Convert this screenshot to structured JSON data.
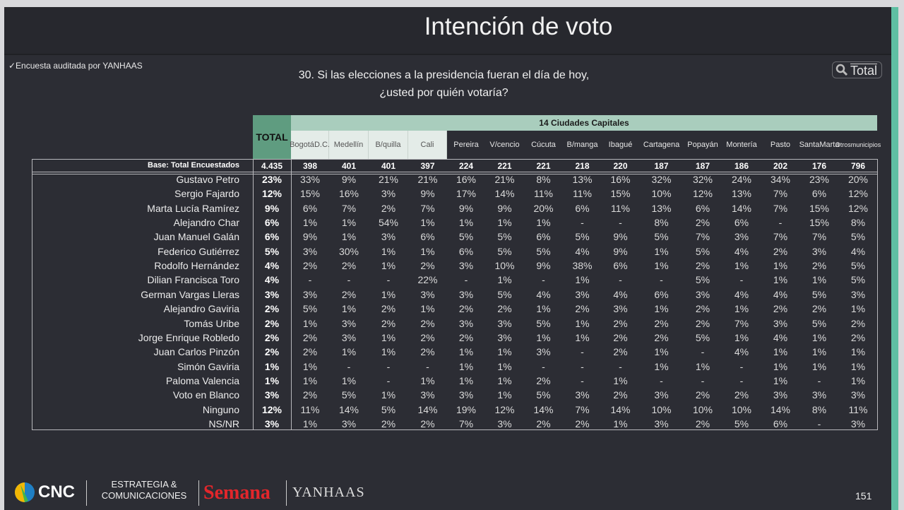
{
  "header": {
    "title": "Intención de voto"
  },
  "audit_note": "✓Encuesta auditada por YANHAAS",
  "question": {
    "line1": "30. Si las elecciones a la presidencia fueran el día de hoy,",
    "line2": "¿usted por quién votaría?"
  },
  "filter": {
    "icon": "search-icon",
    "label": "Total"
  },
  "table": {
    "group_header": "14 Ciudades Capitales",
    "total_header": "TOTAL",
    "columns": [
      {
        "l1": "Bogotá",
        "l2": "D.C.",
        "light": true
      },
      {
        "l1": "Medellín",
        "l2": "",
        "light": true
      },
      {
        "l1": "B/quilla",
        "l2": "",
        "light": true
      },
      {
        "l1": "Cali",
        "l2": "",
        "light": true
      },
      {
        "l1": "Pereira",
        "l2": ""
      },
      {
        "l1": "V/cencio",
        "l2": ""
      },
      {
        "l1": "Cúcuta",
        "l2": ""
      },
      {
        "l1": "B/manga",
        "l2": ""
      },
      {
        "l1": "Ibagué",
        "l2": ""
      },
      {
        "l1": "Cartagena",
        "l2": ""
      },
      {
        "l1": "Popayán",
        "l2": ""
      },
      {
        "l1": "Montería",
        "l2": ""
      },
      {
        "l1": "Pasto",
        "l2": ""
      },
      {
        "l1": "Santa",
        "l2": "Marta"
      },
      {
        "l1": "Otros",
        "l2": "municipios",
        "small": true
      }
    ],
    "base": {
      "label": "Base: Total Encuestados",
      "total": "4.435",
      "values": [
        "398",
        "401",
        "401",
        "397",
        "224",
        "221",
        "221",
        "218",
        "220",
        "187",
        "187",
        "186",
        "202",
        "176",
        "796"
      ]
    },
    "rows": [
      {
        "label": "Gustavo Petro",
        "total": "23%",
        "values": [
          "33%",
          "9%",
          "21%",
          "21%",
          "16%",
          "21%",
          "8%",
          "13%",
          "16%",
          "32%",
          "32%",
          "24%",
          "34%",
          "23%",
          "20%"
        ]
      },
      {
        "label": "Sergio Fajardo",
        "total": "12%",
        "values": [
          "15%",
          "16%",
          "3%",
          "9%",
          "17%",
          "14%",
          "11%",
          "11%",
          "15%",
          "10%",
          "12%",
          "13%",
          "7%",
          "6%",
          "12%"
        ]
      },
      {
        "label": "Marta Lucía Ramírez",
        "total": "9%",
        "values": [
          "6%",
          "7%",
          "2%",
          "7%",
          "9%",
          "9%",
          "20%",
          "6%",
          "11%",
          "13%",
          "6%",
          "14%",
          "7%",
          "15%",
          "12%"
        ]
      },
      {
        "label": "Alejandro Char",
        "total": "6%",
        "values": [
          "1%",
          "1%",
          "54%",
          "1%",
          "1%",
          "1%",
          "1%",
          "-",
          "-",
          "8%",
          "2%",
          "6%",
          "-",
          "15%",
          "8%"
        ]
      },
      {
        "label": "Juan Manuel Galán",
        "total": "6%",
        "values": [
          "9%",
          "1%",
          "3%",
          "6%",
          "5%",
          "5%",
          "6%",
          "5%",
          "9%",
          "5%",
          "7%",
          "3%",
          "7%",
          "7%",
          "5%"
        ]
      },
      {
        "label": "Federico Gutiérrez",
        "total": "5%",
        "values": [
          "3%",
          "30%",
          "1%",
          "1%",
          "6%",
          "5%",
          "5%",
          "4%",
          "9%",
          "1%",
          "5%",
          "4%",
          "2%",
          "3%",
          "4%"
        ]
      },
      {
        "label": "Rodolfo Hernández",
        "total": "4%",
        "values": [
          "2%",
          "2%",
          "1%",
          "2%",
          "3%",
          "10%",
          "9%",
          "38%",
          "6%",
          "1%",
          "2%",
          "1%",
          "1%",
          "2%",
          "5%"
        ]
      },
      {
        "label": "Dilian Francisca Toro",
        "total": "4%",
        "values": [
          "-",
          "-",
          "-",
          "22%",
          "-",
          "1%",
          "-",
          "1%",
          "-",
          "-",
          "5%",
          "-",
          "1%",
          "1%",
          "5%"
        ]
      },
      {
        "label": "German Vargas Lleras",
        "total": "3%",
        "values": [
          "3%",
          "2%",
          "1%",
          "3%",
          "3%",
          "5%",
          "4%",
          "3%",
          "4%",
          "6%",
          "3%",
          "4%",
          "4%",
          "5%",
          "3%"
        ]
      },
      {
        "label": "Alejandro Gaviria",
        "total": "2%",
        "values": [
          "5%",
          "1%",
          "2%",
          "1%",
          "2%",
          "2%",
          "1%",
          "2%",
          "3%",
          "1%",
          "2%",
          "1%",
          "2%",
          "2%",
          "1%"
        ]
      },
      {
        "label": "Tomás Uribe",
        "total": "2%",
        "values": [
          "1%",
          "3%",
          "2%",
          "2%",
          "3%",
          "3%",
          "5%",
          "1%",
          "2%",
          "2%",
          "2%",
          "7%",
          "3%",
          "5%",
          "2%"
        ]
      },
      {
        "label": "Jorge Enrique Robledo",
        "total": "2%",
        "values": [
          "2%",
          "3%",
          "1%",
          "2%",
          "2%",
          "3%",
          "1%",
          "1%",
          "2%",
          "2%",
          "5%",
          "1%",
          "4%",
          "1%",
          "2%"
        ]
      },
      {
        "label": "Juan Carlos Pinzón",
        "total": "2%",
        "values": [
          "2%",
          "1%",
          "1%",
          "2%",
          "1%",
          "1%",
          "3%",
          "-",
          "2%",
          "1%",
          "-",
          "4%",
          "1%",
          "1%",
          "1%"
        ]
      },
      {
        "label": "Simón Gaviria",
        "total": "1%",
        "values": [
          "1%",
          "-",
          "-",
          "-",
          "1%",
          "1%",
          "-",
          "-",
          "-",
          "1%",
          "1%",
          "-",
          "1%",
          "1%",
          "1%"
        ]
      },
      {
        "label": "Paloma Valencia",
        "total": "1%",
        "values": [
          "1%",
          "1%",
          "-",
          "1%",
          "1%",
          "1%",
          "2%",
          "-",
          "1%",
          "-",
          "-",
          "-",
          "1%",
          "-",
          "1%"
        ]
      },
      {
        "label": "Voto en Blanco",
        "total": "3%",
        "values": [
          "2%",
          "5%",
          "1%",
          "3%",
          "3%",
          "1%",
          "5%",
          "3%",
          "2%",
          "3%",
          "2%",
          "2%",
          "3%",
          "3%",
          "3%"
        ]
      },
      {
        "label": "Ninguno",
        "total": "12%",
        "values": [
          "11%",
          "14%",
          "5%",
          "14%",
          "19%",
          "12%",
          "14%",
          "7%",
          "14%",
          "10%",
          "10%",
          "10%",
          "14%",
          "8%",
          "11%"
        ]
      },
      {
        "label": "NS/NR",
        "total": "3%",
        "values": [
          "1%",
          "3%",
          "2%",
          "2%",
          "7%",
          "3%",
          "2%",
          "2%",
          "1%",
          "3%",
          "2%",
          "5%",
          "6%",
          "-",
          "3%"
        ]
      }
    ]
  },
  "footer": {
    "logos": [
      "CNC",
      "ESTRATEGIA & COMUNICACIONES",
      "Semana",
      "YANHAAS"
    ],
    "page_number": "151"
  },
  "colors": {
    "background": "#2c2d34",
    "accent_teal": "#5fbfa3",
    "total_header": "#5f9c80",
    "group_header": "#a9cdbd",
    "semana_red": "#e3262b"
  }
}
